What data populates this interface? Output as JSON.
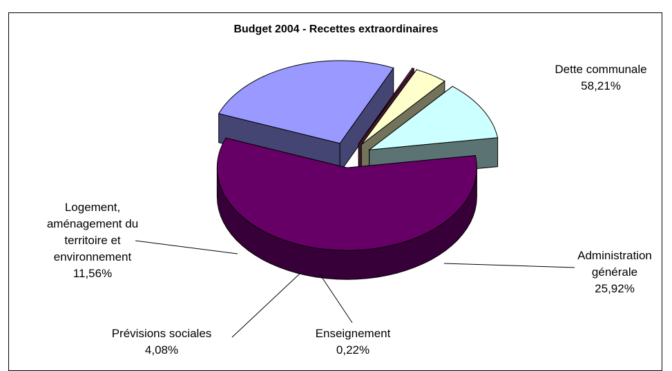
{
  "chart_data": {
    "type": "pie",
    "title": "Budget 2004 - Recettes extraordinaires",
    "slices": [
      {
        "label_lines": [
          "Dette communale"
        ],
        "pct_text": "58,21%",
        "value": 58.21,
        "color": "#660066"
      },
      {
        "label_lines": [
          "Administration",
          "générale"
        ],
        "pct_text": "25,92%",
        "value": 25.92,
        "color": "#9999ff"
      },
      {
        "label_lines": [
          "Enseignement"
        ],
        "pct_text": "0,22%",
        "value": 0.22,
        "color": "#993366"
      },
      {
        "label_lines": [
          "Prévisions sociales"
        ],
        "pct_text": "4,08%",
        "value": 4.08,
        "color": "#ffffcc"
      },
      {
        "label_lines": [
          "Logement,",
          "aménagement du",
          "territoire et",
          "environnement"
        ],
        "pct_text": "11,56%",
        "value": 11.56,
        "color": "#ccffff"
      }
    ],
    "legend": "none",
    "style": "3d-exploded"
  }
}
